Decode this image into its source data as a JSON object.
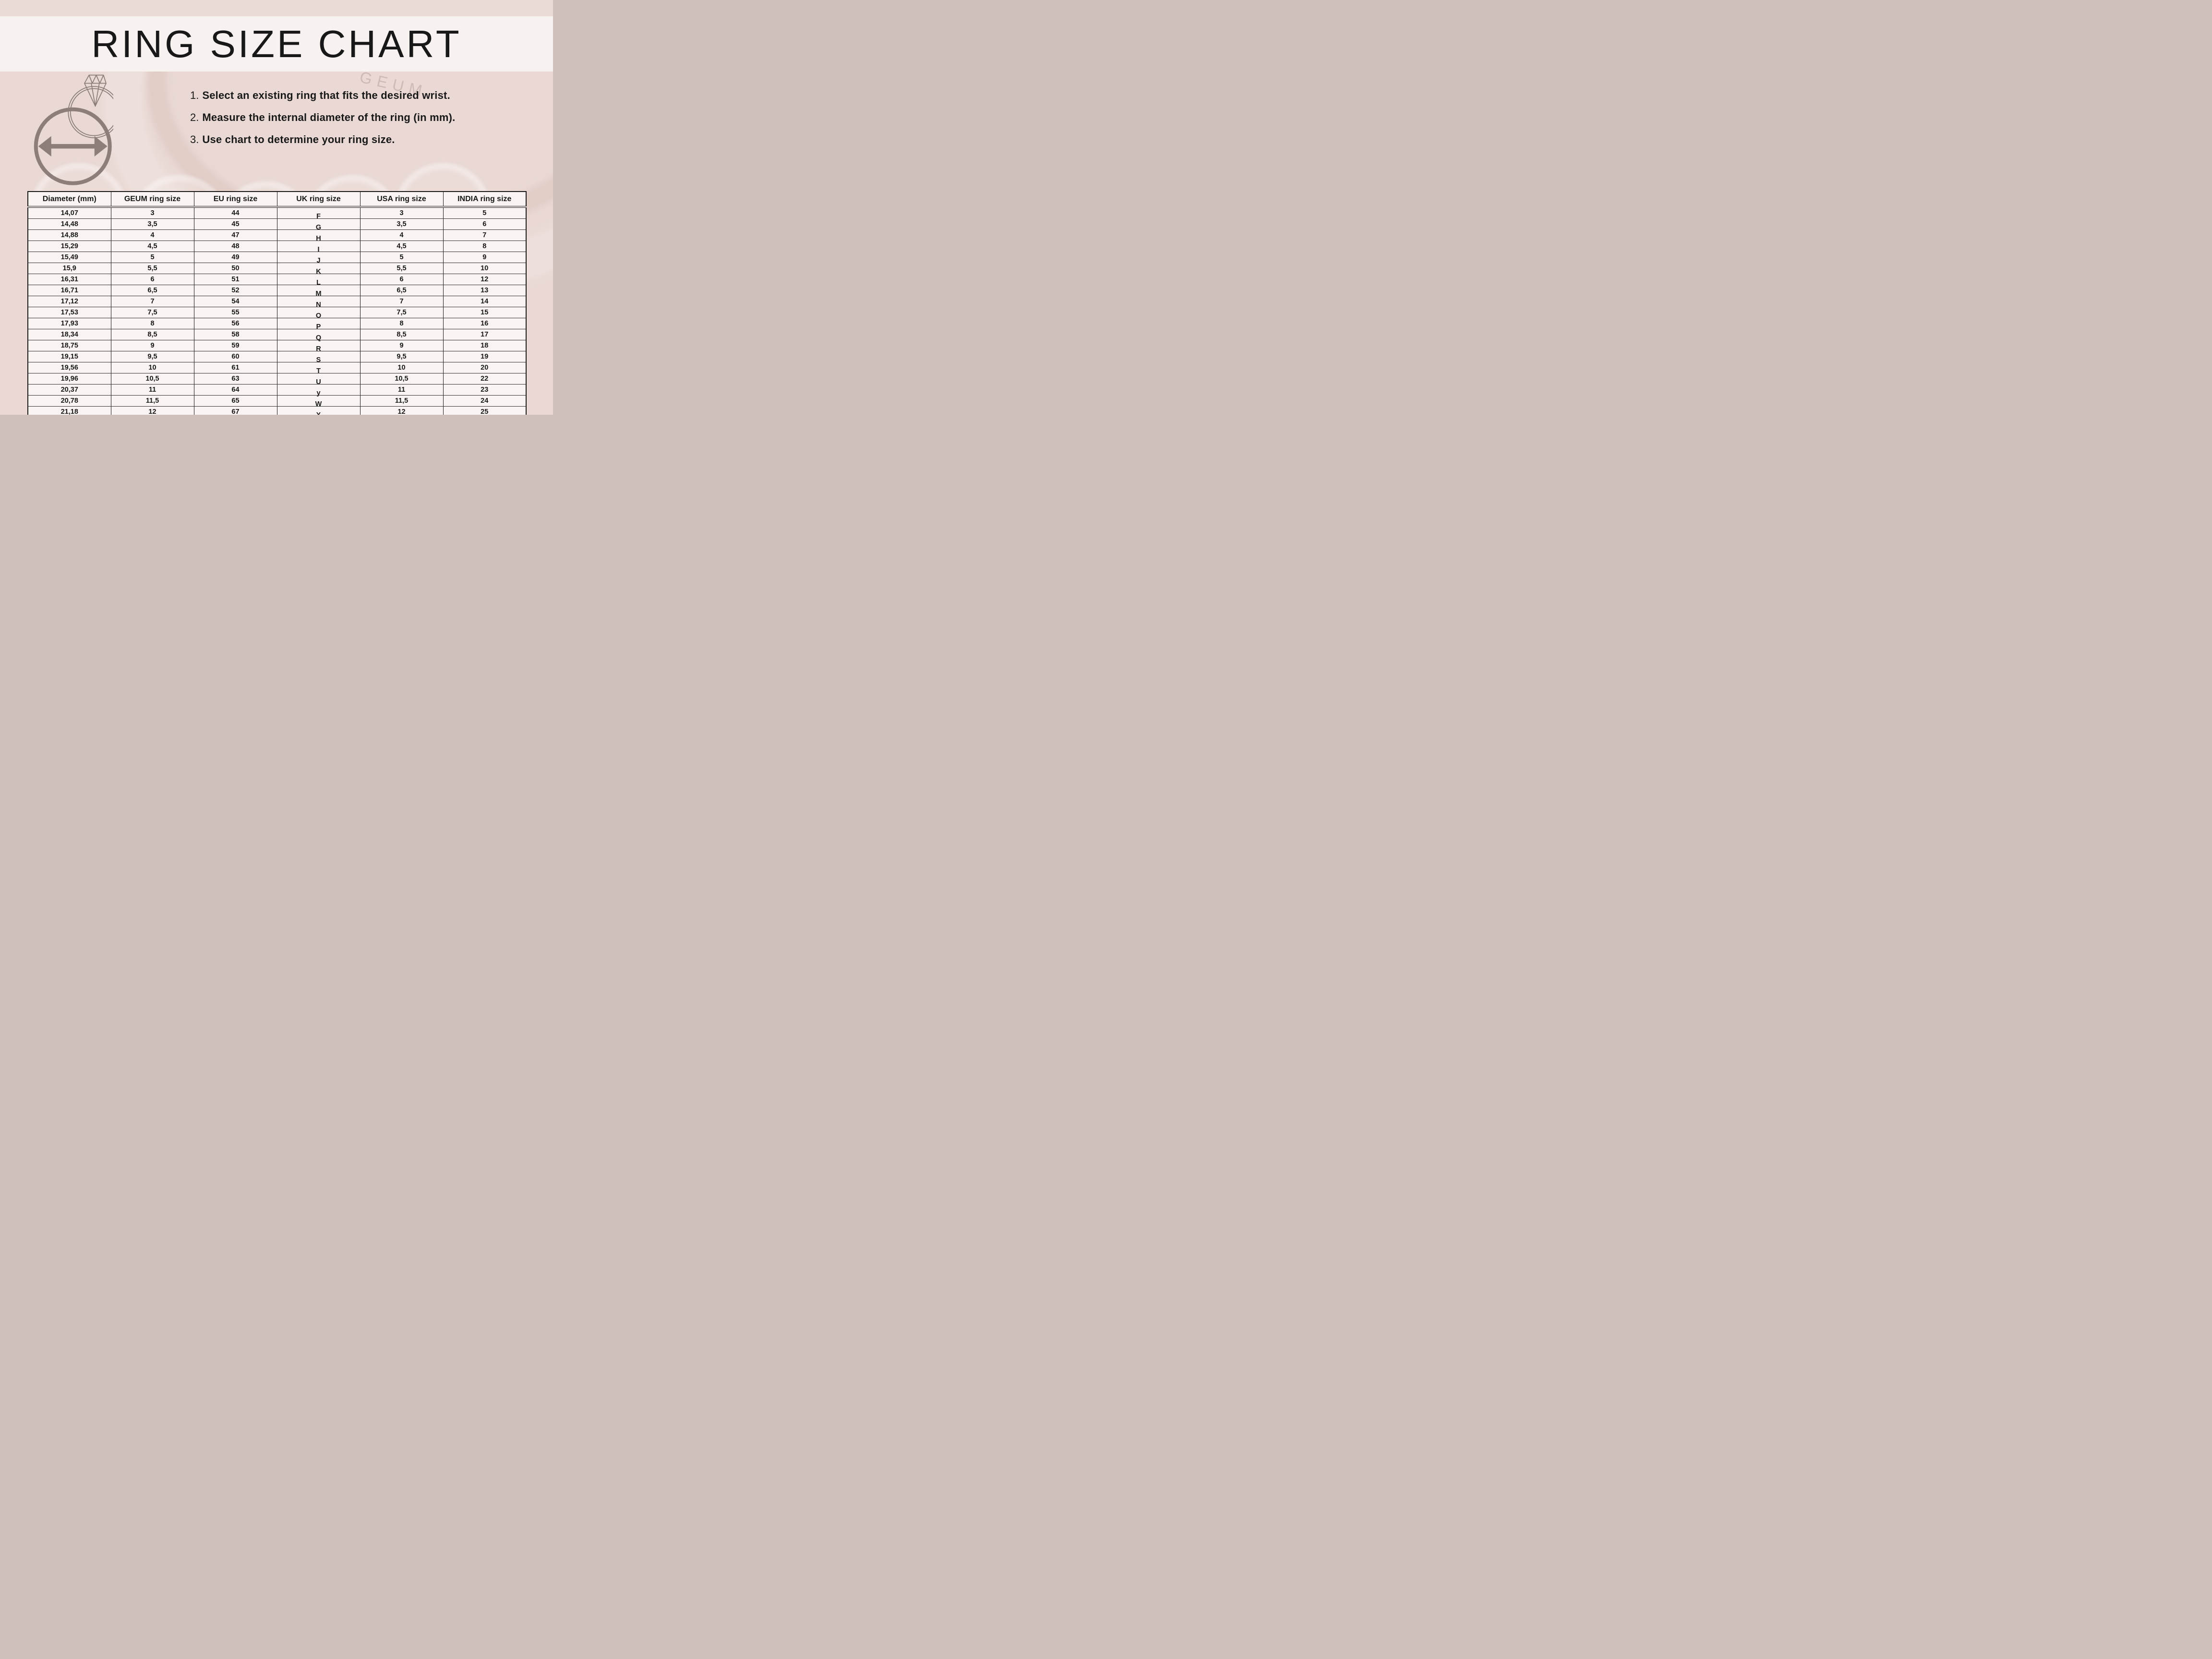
{
  "title": "RING SIZE CHART",
  "watermark_text": "GEUM",
  "instructions": [
    {
      "num": "1.",
      "text": "Select an existing ring that fits the desired wrist."
    },
    {
      "num": "2.",
      "text": "Measure the internal diameter of the ring (in mm)."
    },
    {
      "num": "3.",
      "text": "Use chart to determine your ring size."
    }
  ],
  "icons": [
    {
      "name": "diamond-ring-icon",
      "meaning": "outlined diamond ring"
    },
    {
      "name": "diameter-arrow-icon",
      "meaning": "circle with double-headed arrow showing internal diameter"
    }
  ],
  "table": {
    "headers": [
      "Diameter (mm)",
      "GEUM ring size",
      "EU ring size",
      "UK ring size",
      "USA ring size",
      "INDIA ring size"
    ],
    "rows": [
      [
        "14,07",
        "3",
        "44",
        "F",
        "3",
        "5"
      ],
      [
        "14,48",
        "3,5",
        "45",
        "G",
        "3,5",
        "6"
      ],
      [
        "14,88",
        "4",
        "47",
        "H",
        "4",
        "7"
      ],
      [
        "15,29",
        "4,5",
        "48",
        "I",
        "4,5",
        "8"
      ],
      [
        "15,49",
        "5",
        "49",
        "J",
        "5",
        "9"
      ],
      [
        "15,9",
        "5,5",
        "50",
        "K",
        "5,5",
        "10"
      ],
      [
        "16,31",
        "6",
        "51",
        "L",
        "6",
        "12"
      ],
      [
        "16,71",
        "6,5",
        "52",
        "M",
        "6,5",
        "13"
      ],
      [
        "17,12",
        "7",
        "54",
        "N",
        "7",
        "14"
      ],
      [
        "17,53",
        "7,5",
        "55",
        "O",
        "7,5",
        "15"
      ],
      [
        "17,93",
        "8",
        "56",
        "P",
        "8",
        "16"
      ],
      [
        "18,34",
        "8,5",
        "58",
        "Q",
        "8,5",
        "17"
      ],
      [
        "18,75",
        "9",
        "59",
        "R",
        "9",
        "18"
      ],
      [
        "19,15",
        "9,5",
        "60",
        "S",
        "9,5",
        "19"
      ],
      [
        "19,56",
        "10",
        "61",
        "T",
        "10",
        "20"
      ],
      [
        "19,96",
        "10,5",
        "63",
        "U",
        "10,5",
        "22"
      ],
      [
        "20,37",
        "11",
        "64",
        "y",
        "11",
        "23"
      ],
      [
        "20,78",
        "11,5",
        "65",
        "W",
        "11,5",
        "24"
      ],
      [
        "21,18",
        "12",
        "67",
        "X",
        "12",
        "25"
      ]
    ]
  },
  "colors": {
    "page_bg": "#e9d8d3",
    "top_band": "#eadbd6",
    "title_band": "#f7f1ef",
    "table_bg": "#f9f4f2",
    "text": "#181818",
    "icon": "#8c7d78",
    "watermark": "#947c74"
  }
}
